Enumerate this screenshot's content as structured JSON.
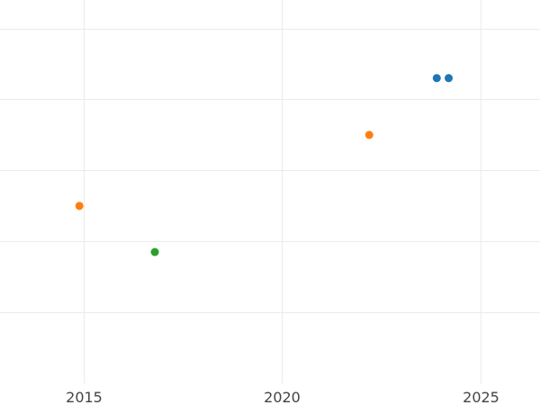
{
  "chart_data": {
    "type": "scatter",
    "title": "",
    "xlabel": "",
    "ylabel": "",
    "xlim": [
      2012.9,
      2026.5
    ],
    "ylim": [
      0,
      5.4
    ],
    "grid": true,
    "legend": "none",
    "x_ticks": [
      2015,
      2020,
      2025
    ],
    "x_tick_labels": [
      "2015",
      "2020",
      "2025"
    ],
    "y_gridlines": [
      1,
      2,
      3,
      4,
      5
    ],
    "series": [
      {
        "color": "#1f77b4",
        "points": [
          {
            "x": 2023.9,
            "y": 4.3
          },
          {
            "x": 2024.2,
            "y": 4.3
          }
        ]
      },
      {
        "color": "#ff7f0e",
        "points": [
          {
            "x": 2014.9,
            "y": 2.5
          },
          {
            "x": 2022.2,
            "y": 3.5
          }
        ]
      },
      {
        "color": "#2ca02c",
        "points": [
          {
            "x": 2016.8,
            "y": 1.85
          }
        ]
      }
    ]
  }
}
